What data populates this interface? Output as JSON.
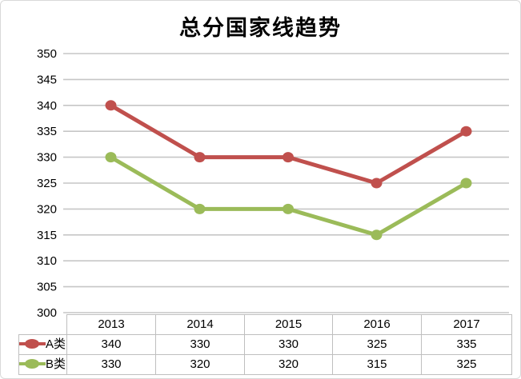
{
  "title": "总分国家线趋势",
  "chart_data": {
    "type": "line",
    "title": "总分国家线趋势",
    "categories": [
      "2013",
      "2014",
      "2015",
      "2016",
      "2017"
    ],
    "series": [
      {
        "name": "A类",
        "values": [
          340,
          330,
          330,
          325,
          335
        ],
        "color": "#C0504D"
      },
      {
        "name": "B类",
        "values": [
          330,
          320,
          320,
          315,
          325
        ],
        "color": "#9BBB59"
      }
    ],
    "xlabel": "",
    "ylabel": "",
    "ylim": [
      300,
      350
    ],
    "yticks": [
      350,
      345,
      340,
      335,
      330,
      325,
      320,
      315,
      310,
      305,
      300
    ],
    "grid": true,
    "gridline_color": "#C6C6C6",
    "marker": "circle",
    "legend_position": "data-table-below-plot",
    "data_table_border_color": "#BFBFBF",
    "text_color": "#000000"
  }
}
